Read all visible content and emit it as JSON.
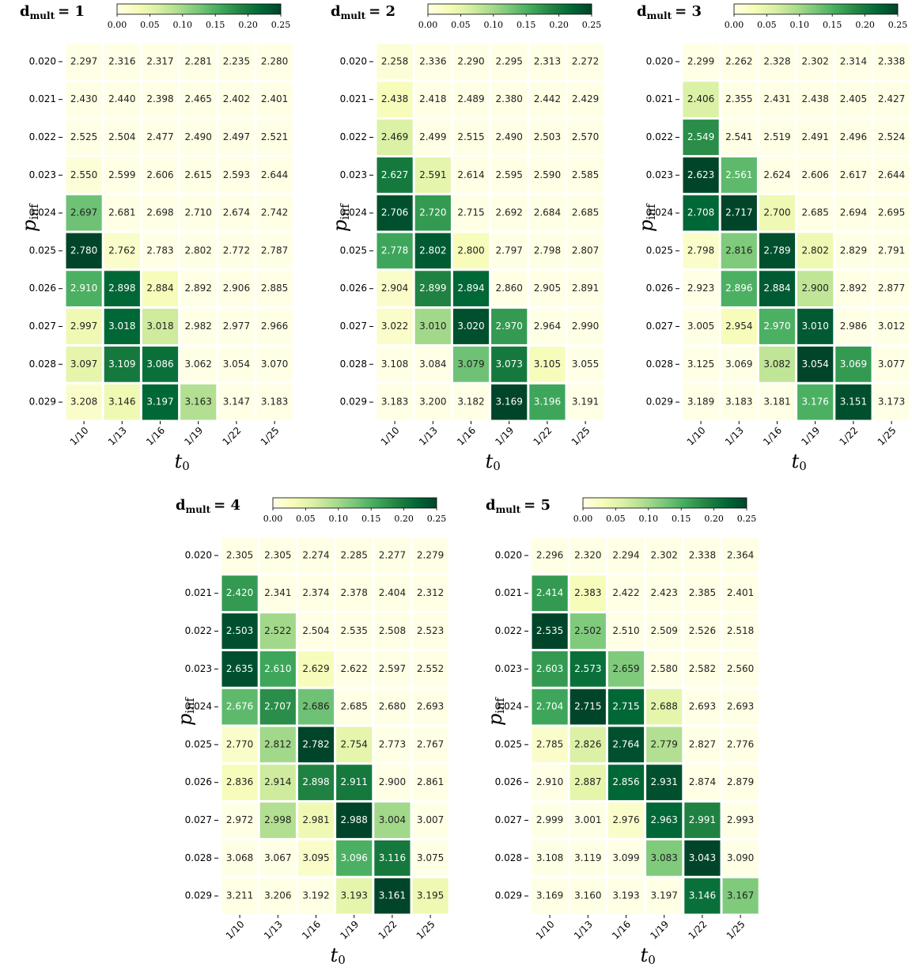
{
  "chart_data": [
    {
      "type": "heatmap",
      "title": "d",
      "title_subscript": "mult",
      "title_suffix": "= 1",
      "xlabel": "t",
      "xlabel_subscript": "0",
      "ylabel": "p",
      "ylabel_subscript": "inf",
      "categories": [
        "1/10",
        "1/13",
        "1/16",
        "1/19",
        "1/22",
        "1/25"
      ],
      "y_categories": [
        "0.020",
        "0.021",
        "0.022",
        "0.023",
        "0.024",
        "0.025",
        "0.026",
        "0.027",
        "0.028",
        "0.029"
      ],
      "clim": [
        0,
        0.25
      ],
      "cticks": [
        {
          "value": 0,
          "label": "0.00"
        },
        0.05,
        {
          "value": 0.1,
          "label": "0.10"
        },
        0.15,
        {
          "value": 0.2,
          "label": "0.20"
        },
        0.25
      ],
      "colormap": [
        "#ffffe5",
        "#f7fcb9",
        "#d9f0a3",
        "#addd8e",
        "#78c679",
        "#41ab5d",
        "#238443",
        "#006837",
        "#004529"
      ],
      "annotations": [
        [
          "2.297",
          "2.316",
          "2.317",
          "2.281",
          "2.235",
          "2.280"
        ],
        [
          "2.430",
          "2.440",
          "2.398",
          "2.465",
          "2.402",
          "2.401"
        ],
        [
          "2.525",
          "2.504",
          "2.477",
          "2.490",
          "2.497",
          "2.521"
        ],
        [
          "2.550",
          "2.599",
          "2.606",
          "2.615",
          "2.593",
          "2.644"
        ],
        [
          "2.697",
          "2.681",
          "2.698",
          "2.710",
          "2.674",
          "2.742"
        ],
        [
          "2.780",
          "2.762",
          "2.783",
          "2.802",
          "2.772",
          "2.787"
        ],
        [
          "2.910",
          "2.898",
          "2.884",
          "2.892",
          "2.906",
          "2.885"
        ],
        [
          "2.997",
          "3.018",
          "3.018",
          "2.982",
          "2.977",
          "2.966"
        ],
        [
          "3.097",
          "3.109",
          "3.086",
          "3.062",
          "3.054",
          "3.070"
        ],
        [
          "3.208",
          "3.146",
          "3.197",
          "3.163",
          "3.147",
          "3.183"
        ]
      ],
      "values": [
        [
          0,
          0,
          0,
          0,
          0,
          0
        ],
        [
          0,
          0,
          0,
          0,
          0,
          0
        ],
        [
          0,
          0,
          0,
          0,
          0,
          0
        ],
        [
          0.01,
          0,
          0,
          0,
          0,
          0
        ],
        [
          0.13,
          0,
          0,
          0,
          0,
          0
        ],
        [
          0.25,
          0.02,
          0,
          0,
          0,
          0
        ],
        [
          0.15,
          0.22,
          0.03,
          0,
          0,
          0
        ],
        [
          0.04,
          0.22,
          0.07,
          0,
          0,
          0
        ],
        [
          0.05,
          0.2,
          0.21,
          0,
          0,
          0
        ],
        [
          0.02,
          0.04,
          0.22,
          0.09,
          0,
          0
        ]
      ]
    },
    {
      "type": "heatmap",
      "title": "d",
      "title_subscript": "mult",
      "title_suffix": "= 2",
      "xlabel": "t",
      "xlabel_subscript": "0",
      "ylabel": "p",
      "ylabel_subscript": "inf",
      "categories": [
        "1/10",
        "1/13",
        "1/16",
        "1/19",
        "1/22",
        "1/25"
      ],
      "y_categories": [
        "0.020",
        "0.021",
        "0.022",
        "0.023",
        "0.024",
        "0.025",
        "0.026",
        "0.027",
        "0.028",
        "0.029"
      ],
      "clim": [
        0,
        0.25
      ],
      "cticks": [
        {
          "value": 0,
          "label": "0.00"
        },
        0.05,
        {
          "value": 0.1,
          "label": "0.10"
        },
        0.15,
        {
          "value": 0.2,
          "label": "0.20"
        },
        0.25
      ],
      "colormap": [
        "#ffffe5",
        "#f7fcb9",
        "#d9f0a3",
        "#addd8e",
        "#78c679",
        "#41ab5d",
        "#238443",
        "#006837",
        "#004529"
      ],
      "annotations": [
        [
          "2.258",
          "2.336",
          "2.290",
          "2.295",
          "2.313",
          "2.272"
        ],
        [
          "2.438",
          "2.418",
          "2.489",
          "2.380",
          "2.442",
          "2.429"
        ],
        [
          "2.469",
          "2.499",
          "2.515",
          "2.490",
          "2.503",
          "2.570"
        ],
        [
          "2.627",
          "2.591",
          "2.614",
          "2.595",
          "2.590",
          "2.585"
        ],
        [
          "2.706",
          "2.720",
          "2.715",
          "2.692",
          "2.684",
          "2.685"
        ],
        [
          "2.778",
          "2.802",
          "2.800",
          "2.797",
          "2.798",
          "2.807"
        ],
        [
          "2.904",
          "2.899",
          "2.894",
          "2.860",
          "2.905",
          "2.891"
        ],
        [
          "3.022",
          "3.010",
          "3.020",
          "2.970",
          "2.964",
          "2.990"
        ],
        [
          "3.108",
          "3.084",
          "3.079",
          "3.073",
          "3.105",
          "3.055"
        ],
        [
          "3.183",
          "3.200",
          "3.182",
          "3.169",
          "3.196",
          "3.191"
        ]
      ],
      "values": [
        [
          0.01,
          0,
          0,
          0,
          0,
          0
        ],
        [
          0.03,
          0,
          0,
          0,
          0,
          0
        ],
        [
          0.06,
          0,
          0,
          0,
          0,
          0
        ],
        [
          0.2,
          0.05,
          0,
          0,
          0,
          0
        ],
        [
          0.24,
          0.17,
          0,
          0,
          0,
          0
        ],
        [
          0.16,
          0.23,
          0.03,
          0,
          0,
          0
        ],
        [
          0.02,
          0.19,
          0.22,
          0,
          0,
          0
        ],
        [
          0.02,
          0.1,
          0.24,
          0.17,
          0,
          0
        ],
        [
          0,
          0,
          0.13,
          0.2,
          0.03,
          0
        ],
        [
          0,
          0,
          0,
          0.25,
          0.16,
          0
        ]
      ]
    },
    {
      "type": "heatmap",
      "title": "d",
      "title_subscript": "mult",
      "title_suffix": "= 3",
      "xlabel": "t",
      "xlabel_subscript": "0",
      "ylabel": "p",
      "ylabel_subscript": "inf",
      "categories": [
        "1/10",
        "1/13",
        "1/16",
        "1/19",
        "1/22",
        "1/25"
      ],
      "y_categories": [
        "0.020",
        "0.021",
        "0.022",
        "0.023",
        "0.024",
        "0.025",
        "0.026",
        "0.027",
        "0.028",
        "0.029"
      ],
      "clim": [
        0,
        0.25
      ],
      "cticks": [
        {
          "value": 0,
          "label": "0.00"
        },
        0.05,
        {
          "value": 0.1,
          "label": "0.10"
        },
        0.15,
        {
          "value": 0.2,
          "label": "0.20"
        },
        0.25
      ],
      "colormap": [
        "#ffffe5",
        "#f7fcb9",
        "#d9f0a3",
        "#addd8e",
        "#78c679",
        "#41ab5d",
        "#238443",
        "#006837",
        "#004529"
      ],
      "annotations": [
        [
          "2.299",
          "2.262",
          "2.328",
          "2.302",
          "2.314",
          "2.338"
        ],
        [
          "2.406",
          "2.355",
          "2.431",
          "2.438",
          "2.405",
          "2.427"
        ],
        [
          "2.549",
          "2.541",
          "2.519",
          "2.491",
          "2.496",
          "2.524"
        ],
        [
          "2.623",
          "2.561",
          "2.624",
          "2.606",
          "2.617",
          "2.644"
        ],
        [
          "2.708",
          "2.717",
          "2.700",
          "2.685",
          "2.694",
          "2.695"
        ],
        [
          "2.798",
          "2.816",
          "2.789",
          "2.802",
          "2.829",
          "2.791"
        ],
        [
          "2.923",
          "2.896",
          "2.884",
          "2.900",
          "2.892",
          "2.877"
        ],
        [
          "3.005",
          "2.954",
          "2.970",
          "3.010",
          "2.986",
          "3.012"
        ],
        [
          "3.125",
          "3.069",
          "3.082",
          "3.054",
          "3.069",
          "3.077"
        ],
        [
          "3.189",
          "3.183",
          "3.181",
          "3.176",
          "3.151",
          "3.173"
        ]
      ],
      "values": [
        [
          0,
          0,
          0,
          0,
          0,
          0
        ],
        [
          0.06,
          0,
          0,
          0,
          0,
          0
        ],
        [
          0.18,
          0,
          0,
          0,
          0,
          0
        ],
        [
          0.25,
          0.14,
          0,
          0,
          0,
          0
        ],
        [
          0.22,
          0.25,
          0.04,
          0,
          0,
          0
        ],
        [
          0.02,
          0.12,
          0.24,
          0.04,
          0,
          0
        ],
        [
          0,
          0.15,
          0.23,
          0.08,
          0,
          0
        ],
        [
          0,
          0.03,
          0.15,
          0.23,
          0,
          0
        ],
        [
          0,
          0,
          0.08,
          0.25,
          0.17,
          0
        ],
        [
          0,
          0,
          0,
          0.15,
          0.24,
          0
        ]
      ]
    },
    {
      "type": "heatmap",
      "title": "d",
      "title_subscript": "mult",
      "title_suffix": "= 4",
      "xlabel": "t",
      "xlabel_subscript": "0",
      "ylabel": "p",
      "ylabel_subscript": "inf",
      "categories": [
        "1/10",
        "1/13",
        "1/16",
        "1/19",
        "1/22",
        "1/25"
      ],
      "y_categories": [
        "0.020",
        "0.021",
        "0.022",
        "0.023",
        "0.024",
        "0.025",
        "0.026",
        "0.027",
        "0.028",
        "0.029"
      ],
      "clim": [
        0,
        0.25
      ],
      "cticks": [
        {
          "value": 0,
          "label": "0.00"
        },
        0.05,
        {
          "value": 0.1,
          "label": "0.10"
        },
        0.15,
        {
          "value": 0.2,
          "label": "0.20"
        },
        0.25
      ],
      "colormap": [
        "#ffffe5",
        "#f7fcb9",
        "#d9f0a3",
        "#addd8e",
        "#78c679",
        "#41ab5d",
        "#238443",
        "#006837",
        "#004529"
      ],
      "annotations": [
        [
          "2.305",
          "2.305",
          "2.274",
          "2.285",
          "2.277",
          "2.279"
        ],
        [
          "2.420",
          "2.341",
          "2.374",
          "2.378",
          "2.404",
          "2.312"
        ],
        [
          "2.503",
          "2.522",
          "2.504",
          "2.535",
          "2.508",
          "2.523"
        ],
        [
          "2.635",
          "2.610",
          "2.629",
          "2.622",
          "2.597",
          "2.552"
        ],
        [
          "2.676",
          "2.707",
          "2.686",
          "2.685",
          "2.680",
          "2.693"
        ],
        [
          "2.770",
          "2.812",
          "2.782",
          "2.754",
          "2.773",
          "2.767"
        ],
        [
          "2.836",
          "2.914",
          "2.898",
          "2.911",
          "2.900",
          "2.861"
        ],
        [
          "2.972",
          "2.998",
          "2.981",
          "2.988",
          "3.004",
          "3.007"
        ],
        [
          "3.068",
          "3.067",
          "3.095",
          "3.096",
          "3.116",
          "3.075"
        ],
        [
          "3.211",
          "3.206",
          "3.192",
          "3.193",
          "3.161",
          "3.195"
        ]
      ],
      "values": [
        [
          0,
          0,
          0,
          0,
          0,
          0
        ],
        [
          0.17,
          0,
          0,
          0,
          0,
          0
        ],
        [
          0.24,
          0.1,
          0,
          0,
          0,
          0
        ],
        [
          0.24,
          0.16,
          0.03,
          0,
          0,
          0
        ],
        [
          0.14,
          0.18,
          0.13,
          0,
          0,
          0
        ],
        [
          0.02,
          0.1,
          0.25,
          0.05,
          0,
          0
        ],
        [
          0.03,
          0.07,
          0.19,
          0.2,
          0,
          0
        ],
        [
          0,
          0.09,
          0.04,
          0.25,
          0.1,
          0
        ],
        [
          0,
          0,
          0.02,
          0.15,
          0.2,
          0
        ],
        [
          0,
          0,
          0,
          0.05,
          0.25,
          0.04
        ]
      ]
    },
    {
      "type": "heatmap",
      "title": "d",
      "title_subscript": "mult",
      "title_suffix": "= 5",
      "xlabel": "t",
      "xlabel_subscript": "0",
      "ylabel": "p",
      "ylabel_subscript": "inf",
      "categories": [
        "1/10",
        "1/13",
        "1/16",
        "1/19",
        "1/22",
        "1/25"
      ],
      "y_categories": [
        "0.020",
        "0.021",
        "0.022",
        "0.023",
        "0.024",
        "0.025",
        "0.026",
        "0.027",
        "0.028",
        "0.029"
      ],
      "clim": [
        0,
        0.25
      ],
      "cticks": [
        {
          "value": 0,
          "label": "0.00"
        },
        0.05,
        {
          "value": 0.1,
          "label": "0.10"
        },
        0.15,
        {
          "value": 0.2,
          "label": "0.20"
        },
        0.25
      ],
      "colormap": [
        "#ffffe5",
        "#f7fcb9",
        "#d9f0a3",
        "#addd8e",
        "#78c679",
        "#41ab5d",
        "#238443",
        "#006837",
        "#004529"
      ],
      "annotations": [
        [
          "2.296",
          "2.320",
          "2.294",
          "2.302",
          "2.338",
          "2.364"
        ],
        [
          "2.414",
          "2.383",
          "2.422",
          "2.423",
          "2.385",
          "2.401"
        ],
        [
          "2.535",
          "2.502",
          "2.510",
          "2.509",
          "2.526",
          "2.518"
        ],
        [
          "2.603",
          "2.573",
          "2.659",
          "2.580",
          "2.582",
          "2.560"
        ],
        [
          "2.704",
          "2.715",
          "2.715",
          "2.688",
          "2.693",
          "2.693"
        ],
        [
          "2.785",
          "2.826",
          "2.764",
          "2.779",
          "2.827",
          "2.776"
        ],
        [
          "2.910",
          "2.887",
          "2.856",
          "2.931",
          "2.874",
          "2.879"
        ],
        [
          "2.999",
          "3.001",
          "2.976",
          "2.963",
          "2.991",
          "2.993"
        ],
        [
          "3.108",
          "3.119",
          "3.099",
          "3.083",
          "3.043",
          "3.090"
        ],
        [
          "3.169",
          "3.160",
          "3.193",
          "3.197",
          "3.146",
          "3.167"
        ]
      ],
      "values": [
        [
          0,
          0,
          0,
          0,
          0,
          0
        ],
        [
          0.17,
          0.03,
          0,
          0,
          0,
          0
        ],
        [
          0.25,
          0.12,
          0,
          0,
          0,
          0
        ],
        [
          0.17,
          0.21,
          0.12,
          0,
          0,
          0
        ],
        [
          0.16,
          0.25,
          0.22,
          0.05,
          0,
          0
        ],
        [
          0.02,
          0.06,
          0.24,
          0.09,
          0,
          0
        ],
        [
          0,
          0.05,
          0.22,
          0.24,
          0,
          0
        ],
        [
          0,
          0,
          0.02,
          0.22,
          0.19,
          0
        ],
        [
          0,
          0,
          0,
          0.12,
          0.25,
          0
        ],
        [
          0,
          0,
          0,
          0,
          0.21,
          0.12
        ]
      ]
    }
  ]
}
